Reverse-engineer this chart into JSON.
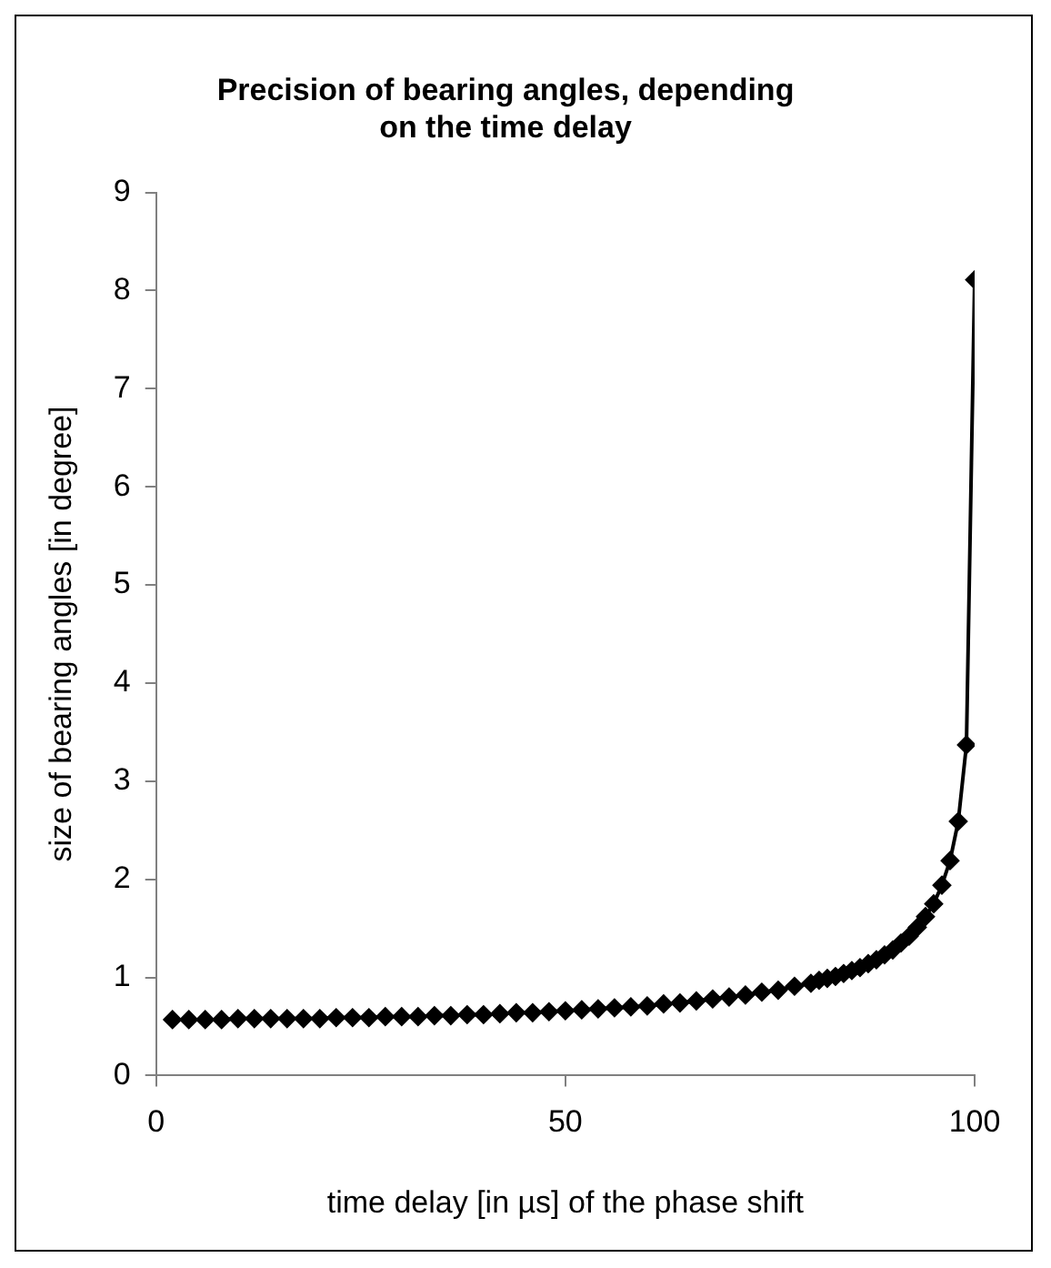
{
  "chart_data": {
    "type": "line",
    "title": "Precision of bearing angles, depending on the time delay",
    "xlabel": "time delay [in µs] of the phase shift",
    "ylabel": "size of bearing angles [in degree]",
    "x": [
      2,
      4,
      6,
      8,
      10,
      12,
      14,
      16,
      18,
      20,
      22,
      24,
      26,
      28,
      30,
      32,
      34,
      36,
      38,
      40,
      42,
      44,
      46,
      48,
      50,
      52,
      54,
      56,
      58,
      60,
      62,
      64,
      66,
      68,
      70,
      72,
      74,
      76,
      78,
      80,
      81,
      82,
      83,
      84,
      85,
      86,
      87,
      88,
      89,
      90,
      91,
      92,
      93,
      94,
      95,
      96,
      97,
      98,
      99,
      100
    ],
    "series": [
      {
        "color": "#000000",
        "values": [
          0.57,
          0.57,
          0.57,
          0.57,
          0.58,
          0.58,
          0.58,
          0.58,
          0.58,
          0.58,
          0.59,
          0.59,
          0.59,
          0.6,
          0.6,
          0.6,
          0.61,
          0.61,
          0.62,
          0.62,
          0.63,
          0.64,
          0.64,
          0.65,
          0.66,
          0.67,
          0.68,
          0.69,
          0.7,
          0.71,
          0.73,
          0.74,
          0.76,
          0.78,
          0.8,
          0.82,
          0.85,
          0.87,
          0.91,
          0.94,
          0.97,
          0.99,
          1.01,
          1.04,
          1.07,
          1.1,
          1.14,
          1.18,
          1.23,
          1.28,
          1.35,
          1.42,
          1.51,
          1.62,
          1.75,
          1.94,
          2.19,
          2.59,
          3.37,
          8.11
        ]
      }
    ],
    "xlim": [
      0,
      100
    ],
    "xticks": [
      0,
      50,
      100
    ],
    "ylim": [
      0,
      9
    ],
    "yticks": [
      0,
      1,
      2,
      3,
      4,
      5,
      6,
      7,
      8,
      9
    ],
    "grid": false,
    "legend": false,
    "marker": "diamond",
    "line_style": "solid"
  }
}
